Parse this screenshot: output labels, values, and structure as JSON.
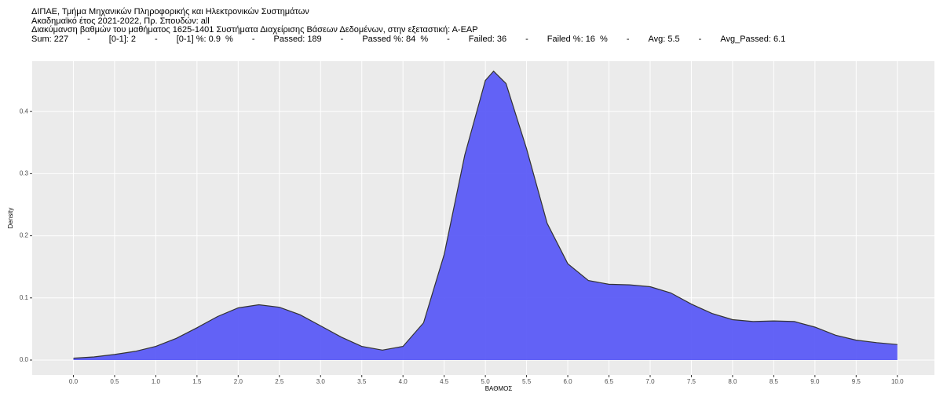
{
  "chart_data": {
    "type": "area",
    "header_lines": [
      "ΔΙΠΑΕ, Τμήμα Μηχανικών Πληροφορικής και Ηλεκτρονικών Συστημάτων",
      "Ακαδημαϊκό έτος 2021-2022, Πρ. Σπουδών: all",
      "Διακύμανση βαθμών του μαθήματος 1625-1401 Συστήματα Διαχείρισης Βάσεων Δεδομένων, στην εξεταστική: Α-ΕΑΡ"
    ],
    "stats_line": [
      "Sum: 227",
      "-",
      "[0-1]: 2",
      "-",
      "[0-1] %: 0.9  %",
      "-",
      "Passed: 189",
      "-",
      "Passed %: 84  %",
      "-",
      "Failed: 36",
      "-",
      "Failed %: 16  %",
      "-",
      "Avg: 5.5",
      "-",
      "Avg_Passed: 6.1"
    ],
    "x_label": "ΒΑΘΜΟΣ",
    "y_label": "Density",
    "x": [
      0,
      0.25,
      0.5,
      0.75,
      1.0,
      1.25,
      1.5,
      1.75,
      2.0,
      2.25,
      2.5,
      2.75,
      3.0,
      3.25,
      3.5,
      3.75,
      4.0,
      4.25,
      4.5,
      4.75,
      5.0,
      5.1,
      5.25,
      5.5,
      5.75,
      6.0,
      6.25,
      6.5,
      6.75,
      7.0,
      7.25,
      7.5,
      7.75,
      8.0,
      8.25,
      8.5,
      8.75,
      9.0,
      9.25,
      9.5,
      9.75,
      10.0
    ],
    "series": [
      {
        "name": "density",
        "color": "#5b5bf7",
        "values": [
          0.003,
          0.005,
          0.009,
          0.014,
          0.022,
          0.035,
          0.052,
          0.07,
          0.084,
          0.089,
          0.085,
          0.073,
          0.055,
          0.037,
          0.022,
          0.016,
          0.022,
          0.06,
          0.17,
          0.33,
          0.45,
          0.465,
          0.445,
          0.34,
          0.22,
          0.155,
          0.128,
          0.122,
          0.121,
          0.118,
          0.108,
          0.09,
          0.075,
          0.065,
          0.062,
          0.063,
          0.062,
          0.053,
          0.04,
          0.032,
          0.028,
          0.025
        ]
      }
    ],
    "xlim": [
      -0.5,
      10.45
    ],
    "ylim": [
      -0.024,
      0.481
    ],
    "xticks": [
      {
        "value": 0,
        "label": "0.0"
      },
      0.5,
      {
        "value": 1,
        "label": "1.0"
      },
      1.5,
      {
        "value": 2,
        "label": "2.0"
      },
      2.5,
      {
        "value": 3,
        "label": "3.0"
      },
      3.5,
      {
        "value": 4,
        "label": "4.0"
      },
      4.5,
      {
        "value": 5,
        "label": "5.0"
      },
      5.5,
      {
        "value": 6,
        "label": "6.0"
      },
      6.5,
      {
        "value": 7,
        "label": "7.0"
      },
      7.5,
      {
        "value": 8,
        "label": "8.0"
      },
      8.5,
      {
        "value": 9,
        "label": "9.0"
      },
      9.5,
      {
        "value": 10,
        "label": "10.0"
      }
    ],
    "yticks": [
      {
        "value": 0,
        "label": "0.0"
      },
      0.1,
      0.2,
      0.3,
      0.4
    ],
    "grid": true
  }
}
